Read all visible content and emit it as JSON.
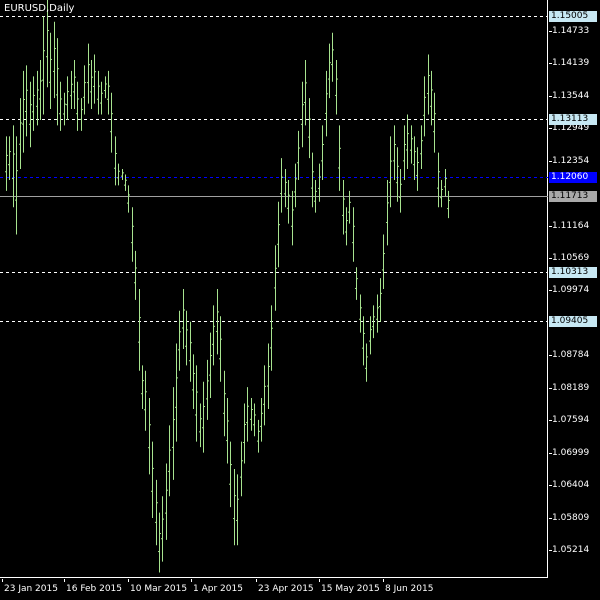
{
  "title": "EURUSD,Daily",
  "price_scale": {
    "min": 1.047,
    "max": 1.153,
    "ticks": [
      "1.14733",
      "1.14139",
      "1.13544",
      "1.12949",
      "1.12354",
      "1.11164",
      "1.10569",
      "1.09974",
      "1.08784",
      "1.08189",
      "1.07594",
      "1.06999",
      "1.06404",
      "1.05809",
      "1.05214"
    ]
  },
  "level_tags": [
    {
      "label": "1.15005",
      "price": 1.15005,
      "style": "dashed",
      "color": "#ffffff",
      "tag_bg": "#c7e8f3",
      "tag_fg": "#000000"
    },
    {
      "label": "1.13113",
      "price": 1.13113,
      "style": "dashed",
      "color": "#ffffff",
      "tag_bg": "#c7e8f3",
      "tag_fg": "#000000"
    },
    {
      "label": "1.10313",
      "price": 1.10313,
      "style": "dashed",
      "color": "#ffffff",
      "tag_bg": "#c7e8f3",
      "tag_fg": "#000000"
    },
    {
      "label": "1.09405",
      "price": 1.09405,
      "style": "dashed",
      "color": "#ffffff",
      "tag_bg": "#c7e8f3",
      "tag_fg": "#000000"
    },
    {
      "label": "1.12060",
      "price": 1.1206,
      "style": "dashed",
      "color": "#0000ff",
      "tag_bg": "#0000ff",
      "tag_fg": "#ffffff"
    },
    {
      "label": "1.11713",
      "price": 1.11713,
      "style": "solid",
      "color": "#a0a0a0",
      "tag_bg": "#a9a9a9",
      "tag_fg": "#000000"
    }
  ],
  "time_labels": [
    "23 Jan 2015",
    "16 Feb 2015",
    "10 Mar 2015",
    "1 Apr 2015",
    "23 Apr 2015",
    "15 May 2015",
    "8 Jun 2015"
  ],
  "chart_data": {
    "type": "ohlc",
    "symbol": "EURUSD",
    "timeframe": "Daily",
    "bar_color": "#a7e38f",
    "grid": false,
    "series": [
      {
        "hl": [
          1.128,
          1.118
        ]
      },
      {
        "hl": [
          1.128,
          1.12
        ]
      },
      {
        "hl": [
          1.13,
          1.115
        ]
      },
      {
        "hl": [
          1.128,
          1.11
        ]
      },
      {
        "hl": [
          1.135,
          1.122
        ]
      },
      {
        "hl": [
          1.14,
          1.125
        ]
      },
      {
        "hl": [
          1.141,
          1.128
        ]
      },
      {
        "hl": [
          1.138,
          1.126
        ]
      },
      {
        "hl": [
          1.139,
          1.129
        ]
      },
      {
        "hl": [
          1.14,
          1.13
        ]
      },
      {
        "hl": [
          1.142,
          1.131
        ]
      },
      {
        "hl": [
          1.15,
          1.132
        ]
      },
      {
        "hl": [
          1.153,
          1.137
        ]
      },
      {
        "hl": [
          1.147,
          1.133
        ]
      },
      {
        "hl": [
          1.149,
          1.135
        ]
      },
      {
        "hl": [
          1.146,
          1.13
        ]
      },
      {
        "hl": [
          1.138,
          1.129
        ]
      },
      {
        "hl": [
          1.136,
          1.13
        ]
      },
      {
        "hl": [
          1.139,
          1.131
        ]
      },
      {
        "hl": [
          1.14,
          1.133
        ]
      },
      {
        "hl": [
          1.142,
          1.133
        ]
      },
      {
        "hl": [
          1.138,
          1.129
        ]
      },
      {
        "hl": [
          1.135,
          1.129
        ]
      },
      {
        "hl": [
          1.141,
          1.132
        ]
      },
      {
        "hl": [
          1.145,
          1.134
        ]
      },
      {
        "hl": [
          1.142,
          1.133
        ]
      },
      {
        "hl": [
          1.143,
          1.134
        ]
      },
      {
        "hl": [
          1.14,
          1.132
        ]
      },
      {
        "hl": [
          1.138,
          1.132
        ]
      },
      {
        "hl": [
          1.139,
          1.135
        ]
      },
      {
        "hl": [
          1.14,
          1.132
        ]
      },
      {
        "hl": [
          1.136,
          1.125
        ]
      },
      {
        "hl": [
          1.128,
          1.119
        ]
      },
      {
        "hl": [
          1.123,
          1.119
        ]
      },
      {
        "hl": [
          1.122,
          1.12
        ]
      },
      {
        "hl": [
          1.121,
          1.118
        ]
      },
      {
        "hl": [
          1.119,
          1.114
        ]
      },
      {
        "hl": [
          1.115,
          1.105
        ]
      },
      {
        "hl": [
          1.107,
          1.098
        ]
      },
      {
        "hl": [
          1.1,
          1.085
        ]
      },
      {
        "hl": [
          1.086,
          1.078
        ]
      },
      {
        "hl": [
          1.085,
          1.074
        ]
      },
      {
        "hl": [
          1.08,
          1.066
        ]
      },
      {
        "hl": [
          1.072,
          1.058
        ]
      },
      {
        "hl": [
          1.065,
          1.053
        ]
      },
      {
        "hl": [
          1.059,
          1.048
        ]
      },
      {
        "hl": [
          1.062,
          1.05
        ]
      },
      {
        "hl": [
          1.068,
          1.054
        ]
      },
      {
        "hl": [
          1.075,
          1.062
        ]
      },
      {
        "hl": [
          1.082,
          1.065
        ]
      },
      {
        "hl": [
          1.09,
          1.072
        ]
      },
      {
        "hl": [
          1.096,
          1.085
        ]
      },
      {
        "hl": [
          1.1,
          1.089
        ]
      },
      {
        "hl": [
          1.096,
          1.086
        ]
      },
      {
        "hl": [
          1.094,
          1.083
        ]
      },
      {
        "hl": [
          1.088,
          1.078
        ]
      },
      {
        "hl": [
          1.086,
          1.072
        ]
      },
      {
        "hl": [
          1.079,
          1.071
        ]
      },
      {
        "hl": [
          1.083,
          1.07
        ]
      },
      {
        "hl": [
          1.087,
          1.076
        ]
      },
      {
        "hl": [
          1.092,
          1.08
        ]
      },
      {
        "hl": [
          1.097,
          1.086
        ]
      },
      {
        "hl": [
          1.1,
          1.088
        ]
      },
      {
        "hl": [
          1.095,
          1.083
        ]
      },
      {
        "hl": [
          1.085,
          1.073
        ]
      },
      {
        "hl": [
          1.08,
          1.068
        ]
      },
      {
        "hl": [
          1.072,
          1.06
        ]
      },
      {
        "hl": [
          1.067,
          1.053
        ]
      },
      {
        "hl": [
          1.066,
          1.053
        ]
      },
      {
        "hl": [
          1.072,
          1.062
        ]
      },
      {
        "hl": [
          1.079,
          1.068
        ]
      },
      {
        "hl": [
          1.082,
          1.072
        ]
      },
      {
        "hl": [
          1.08,
          1.074
        ]
      },
      {
        "hl": [
          1.079,
          1.073
        ]
      },
      {
        "hl": [
          1.076,
          1.07
        ]
      },
      {
        "hl": [
          1.08,
          1.072
        ]
      },
      {
        "hl": [
          1.086,
          1.075
        ]
      },
      {
        "hl": [
          1.09,
          1.078
        ]
      },
      {
        "hl": [
          1.097,
          1.085
        ]
      },
      {
        "hl": [
          1.108,
          1.096
        ]
      },
      {
        "hl": [
          1.116,
          1.104
        ]
      },
      {
        "hl": [
          1.124,
          1.114
        ]
      },
      {
        "hl": [
          1.122,
          1.115
        ]
      },
      {
        "hl": [
          1.12,
          1.112
        ]
      },
      {
        "hl": [
          1.118,
          1.108
        ]
      },
      {
        "hl": [
          1.123,
          1.115
        ]
      },
      {
        "hl": [
          1.129,
          1.12
        ]
      },
      {
        "hl": [
          1.138,
          1.126
        ]
      },
      {
        "hl": [
          1.142,
          1.13
        ]
      },
      {
        "hl": [
          1.135,
          1.124
        ]
      },
      {
        "hl": [
          1.125,
          1.115
        ]
      },
      {
        "hl": [
          1.12,
          1.114
        ]
      },
      {
        "hl": [
          1.123,
          1.116
        ]
      },
      {
        "hl": [
          1.13,
          1.12
        ]
      },
      {
        "hl": [
          1.14,
          1.128
        ]
      },
      {
        "hl": [
          1.145,
          1.135
        ]
      },
      {
        "hl": [
          1.147,
          1.138
        ]
      },
      {
        "hl": [
          1.142,
          1.132
        ]
      },
      {
        "hl": [
          1.13,
          1.118
        ]
      },
      {
        "hl": [
          1.12,
          1.11
        ]
      },
      {
        "hl": [
          1.115,
          1.108
        ]
      },
      {
        "hl": [
          1.118,
          1.112
        ]
      },
      {
        "hl": [
          1.115,
          1.105
        ]
      },
      {
        "hl": [
          1.104,
          1.098
        ]
      },
      {
        "hl": [
          1.099,
          1.092
        ]
      },
      {
        "hl": [
          1.095,
          1.086
        ]
      },
      {
        "hl": [
          1.09,
          1.083
        ]
      },
      {
        "hl": [
          1.095,
          1.088
        ]
      },
      {
        "hl": [
          1.097,
          1.091
        ]
      },
      {
        "hl": [
          1.099,
          1.092
        ]
      },
      {
        "hl": [
          1.102,
          1.094
        ]
      },
      {
        "hl": [
          1.11,
          1.1
        ]
      },
      {
        "hl": [
          1.12,
          1.108
        ]
      },
      {
        "hl": [
          1.128,
          1.115
        ]
      },
      {
        "hl": [
          1.13,
          1.12
        ]
      },
      {
        "hl": [
          1.126,
          1.116
        ]
      },
      {
        "hl": [
          1.122,
          1.114
        ]
      },
      {
        "hl": [
          1.13,
          1.12
        ]
      },
      {
        "hl": [
          1.132,
          1.122
        ]
      },
      {
        "hl": [
          1.13,
          1.123
        ]
      },
      {
        "hl": [
          1.128,
          1.12
        ]
      },
      {
        "hl": [
          1.126,
          1.118
        ]
      },
      {
        "hl": [
          1.13,
          1.122
        ]
      },
      {
        "hl": [
          1.139,
          1.128
        ]
      },
      {
        "hl": [
          1.143,
          1.132
        ]
      },
      {
        "hl": [
          1.14,
          1.13
        ]
      },
      {
        "hl": [
          1.136,
          1.125
        ]
      },
      {
        "hl": [
          1.125,
          1.115
        ]
      },
      {
        "hl": [
          1.12,
          1.115
        ]
      },
      {
        "hl": [
          1.122,
          1.117
        ]
      },
      {
        "hl": [
          1.118,
          1.113
        ]
      }
    ]
  }
}
